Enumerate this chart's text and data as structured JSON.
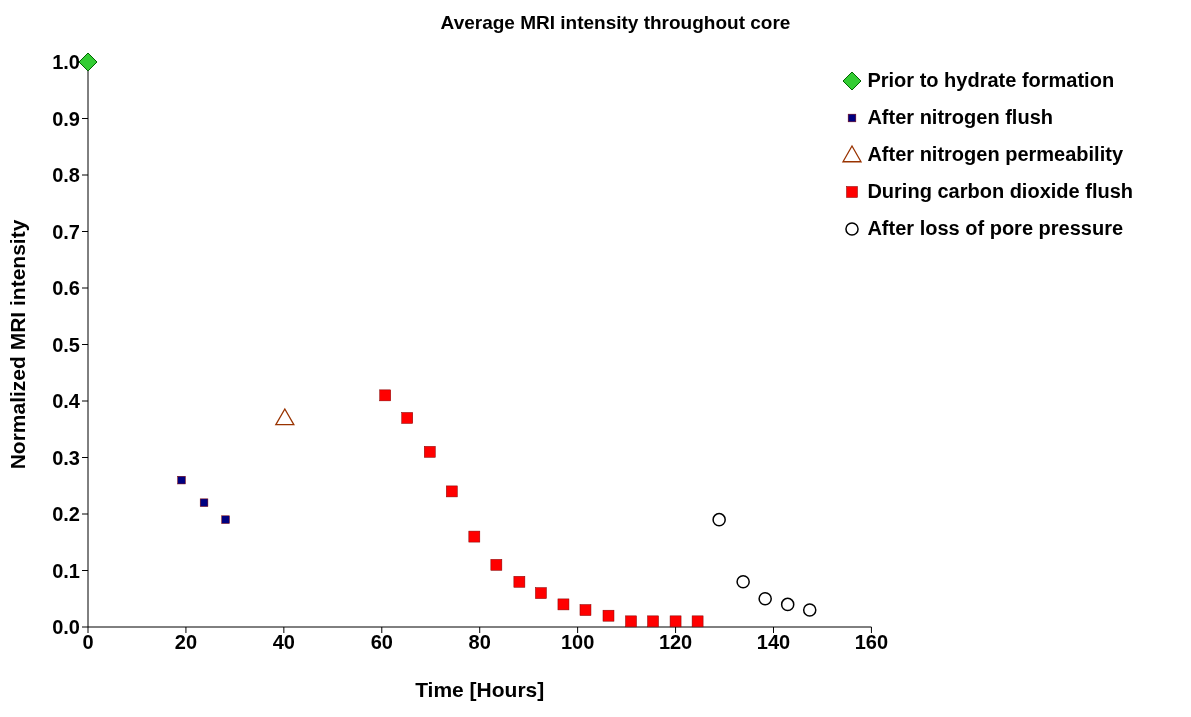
{
  "chart_data": {
    "type": "scatter",
    "title": "Average MRI intensity throughout core",
    "xlabel": "Time [Hours]",
    "ylabel": "Normalized MRI intensity",
    "xlim": [
      0,
      160
    ],
    "xticks": [
      0,
      20,
      40,
      60,
      80,
      100,
      120,
      140,
      160
    ],
    "ylim": [
      0,
      1
    ],
    "yticks": [
      {
        "value": 0,
        "label": "0.0"
      },
      0.1,
      0.2,
      0.3,
      0.4,
      0.5,
      0.6,
      0.7,
      0.8,
      0.9,
      {
        "value": 1,
        "label": "1.0"
      }
    ],
    "grid": false,
    "legend": "top right",
    "series": [
      {
        "name": "Prior to hydrate formation",
        "color": "#33cc33",
        "marker": "diamond",
        "x": [
          0
        ],
        "values": [
          1.0
        ]
      },
      {
        "name": "After nitrogen flush",
        "color": "#000080",
        "marker": "square",
        "x": [
          19.1,
          23.7,
          28.1
        ],
        "values": [
          0.26,
          0.22,
          0.19
        ]
      },
      {
        "name": "After nitrogen permeability",
        "color": "#993300",
        "marker": "triangle",
        "x": [
          40.2
        ],
        "values": [
          0.37
        ]
      },
      {
        "name": "During carbon dioxide flush",
        "color": "#ff0000",
        "marker": "square",
        "x": [
          60.7,
          65.2,
          69.8,
          74.3,
          78.9,
          83.4,
          88.1,
          92.5,
          97.1,
          101.6,
          106.3,
          110.9,
          115.4,
          120.0,
          124.5
        ],
        "values": [
          0.41,
          0.37,
          0.31,
          0.24,
          0.16,
          0.11,
          0.08,
          0.06,
          0.04,
          0.03,
          0.02,
          0.01,
          0.01,
          0.01,
          0.01
        ]
      },
      {
        "name": "After loss of pore pressure",
        "color": "#000000",
        "marker": "circle",
        "x": [
          128.9,
          133.8,
          138.3,
          142.9,
          147.4
        ],
        "values": [
          0.19,
          0.08,
          0.05,
          0.04,
          0.03
        ]
      }
    ]
  }
}
